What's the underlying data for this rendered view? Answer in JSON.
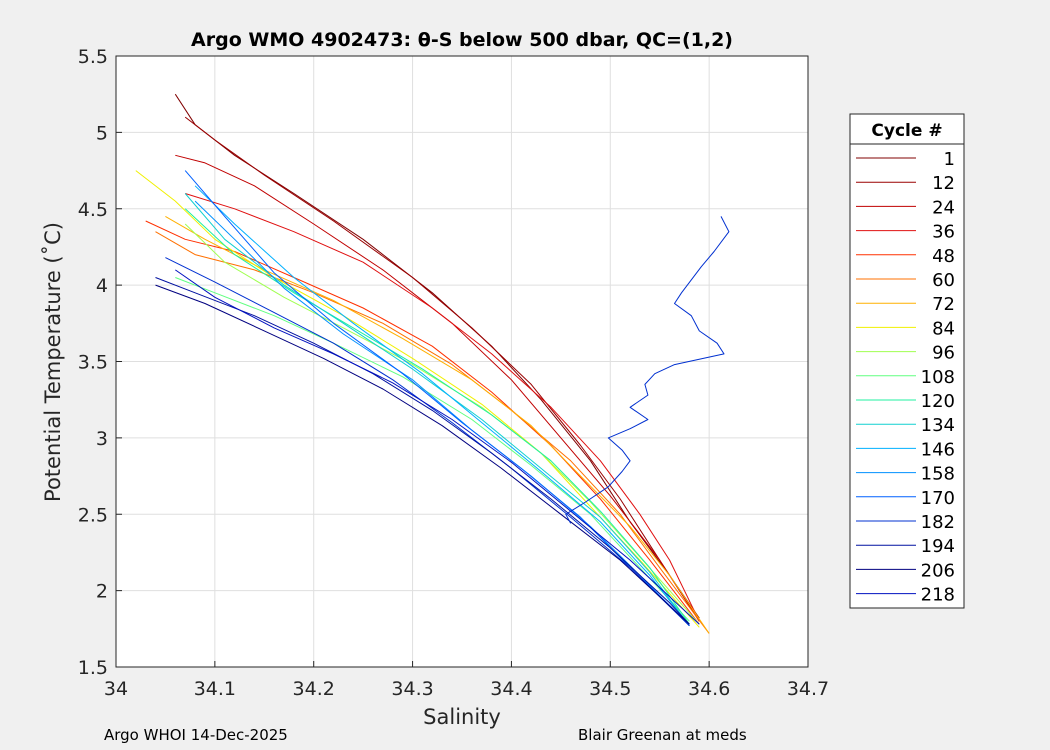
{
  "chart_data": {
    "type": "line",
    "title": "Argo WMO 4902473: θ-S below 500 dbar,  QC=(1,2)",
    "xlabel": "Salinity",
    "ylabel": "Potential Temperature (˚C)",
    "xlim": [
      34.0,
      34.7
    ],
    "ylim": [
      1.5,
      5.5
    ],
    "xticks": [
      "34",
      "34.1",
      "34.2",
      "34.3",
      "34.4",
      "34.5",
      "34.6",
      "34.7"
    ],
    "yticks": [
      "1.5",
      "2",
      "2.5",
      "3",
      "3.5",
      "4",
      "4.5",
      "5",
      "5.5"
    ],
    "grid": true,
    "legend_title": "Cycle #",
    "legend_position": "outside-right",
    "legend": [
      {
        "label": "1",
        "color": "#800000"
      },
      {
        "label": "12",
        "color": "#9a0000"
      },
      {
        "label": "24",
        "color": "#c00000"
      },
      {
        "label": "36",
        "color": "#e01010"
      },
      {
        "label": "48",
        "color": "#ff3000"
      },
      {
        "label": "60",
        "color": "#ff7000"
      },
      {
        "label": "72",
        "color": "#ffb000"
      },
      {
        "label": "84",
        "color": "#f0f000"
      },
      {
        "label": "96",
        "color": "#a0ff50"
      },
      {
        "label": "108",
        "color": "#60ff80"
      },
      {
        "label": "120",
        "color": "#20f0a0"
      },
      {
        "label": "134",
        "color": "#10d0d0"
      },
      {
        "label": "146",
        "color": "#00b0ff"
      },
      {
        "label": "158",
        "color": "#0090ff"
      },
      {
        "label": "170",
        "color": "#0060ff"
      },
      {
        "label": "182",
        "color": "#0030d0"
      },
      {
        "label": "194",
        "color": "#0010a0"
      },
      {
        "label": "206",
        "color": "#000080"
      },
      {
        "label": "218",
        "color": "#0010c0"
      }
    ],
    "series": [
      {
        "color": "#800000",
        "x": [
          34.06,
          34.08,
          34.12,
          34.18,
          34.25,
          34.32,
          34.38,
          34.43,
          34.48,
          34.52,
          34.56,
          34.59
        ],
        "y": [
          5.25,
          5.05,
          4.85,
          4.6,
          4.3,
          3.95,
          3.6,
          3.25,
          2.85,
          2.45,
          2.1,
          1.82
        ]
      },
      {
        "color": "#9a0000",
        "x": [
          34.07,
          34.1,
          34.15,
          34.22,
          34.3,
          34.36,
          34.42,
          34.47,
          34.51,
          34.55,
          34.59
        ],
        "y": [
          5.1,
          4.95,
          4.72,
          4.42,
          4.05,
          3.72,
          3.35,
          2.95,
          2.6,
          2.2,
          1.8
        ]
      },
      {
        "color": "#c00000",
        "x": [
          34.06,
          34.09,
          34.14,
          34.2,
          34.27,
          34.34,
          34.4,
          34.45,
          34.5,
          34.55,
          34.59
        ],
        "y": [
          4.85,
          4.8,
          4.65,
          4.4,
          4.1,
          3.75,
          3.38,
          3.0,
          2.62,
          2.2,
          1.8
        ]
      },
      {
        "color": "#e01010",
        "x": [
          34.07,
          34.12,
          34.18,
          34.25,
          34.32,
          34.38,
          34.44,
          34.49,
          34.53,
          34.56,
          34.59
        ],
        "y": [
          4.6,
          4.5,
          4.35,
          4.15,
          3.85,
          3.55,
          3.2,
          2.85,
          2.5,
          2.2,
          1.8
        ]
      },
      {
        "color": "#ff3000",
        "x": [
          34.03,
          34.07,
          34.12,
          34.18,
          34.25,
          34.32,
          34.38,
          34.44,
          34.49,
          34.54,
          34.59
        ],
        "y": [
          4.42,
          4.3,
          4.22,
          4.05,
          3.85,
          3.6,
          3.3,
          2.95,
          2.6,
          2.2,
          1.78
        ]
      },
      {
        "color": "#ff7000",
        "x": [
          34.04,
          34.08,
          34.14,
          34.2,
          34.27,
          34.34,
          34.4,
          34.46,
          34.51,
          34.55,
          34.6
        ],
        "y": [
          4.35,
          4.2,
          4.1,
          3.95,
          3.75,
          3.48,
          3.18,
          2.85,
          2.5,
          2.15,
          1.72
        ]
      },
      {
        "color": "#ffb000",
        "x": [
          34.05,
          34.09,
          34.15,
          34.22,
          34.29,
          34.36,
          34.42,
          34.47,
          34.52,
          34.56,
          34.6
        ],
        "y": [
          4.45,
          4.3,
          4.1,
          3.9,
          3.65,
          3.38,
          3.08,
          2.75,
          2.42,
          2.1,
          1.72
        ]
      },
      {
        "color": "#f0f000",
        "x": [
          34.02,
          34.06,
          34.1,
          34.16,
          34.23,
          34.3,
          34.37,
          34.43,
          34.48,
          34.53,
          34.59
        ],
        "y": [
          4.75,
          4.55,
          4.3,
          4.05,
          3.8,
          3.52,
          3.22,
          2.9,
          2.55,
          2.2,
          1.76
        ]
      },
      {
        "color": "#a0ff50",
        "x": [
          34.07,
          34.11,
          34.17,
          34.23,
          34.3,
          34.37,
          34.43,
          34.48,
          34.53,
          34.59
        ],
        "y": [
          4.4,
          4.15,
          3.92,
          3.72,
          3.48,
          3.2,
          2.9,
          2.58,
          2.22,
          1.78
        ]
      },
      {
        "color": "#60ff80",
        "x": [
          34.06,
          34.1,
          34.16,
          34.22,
          34.29,
          34.36,
          34.42,
          34.48,
          34.53,
          34.58
        ],
        "y": [
          4.05,
          3.95,
          3.8,
          3.62,
          3.4,
          3.12,
          2.82,
          2.5,
          2.15,
          1.8
        ]
      },
      {
        "color": "#20f0a0",
        "x": [
          34.07,
          34.12,
          34.18,
          34.24,
          34.31,
          34.38,
          34.44,
          34.49,
          34.54,
          34.58
        ],
        "y": [
          4.5,
          4.2,
          3.95,
          3.72,
          3.45,
          3.15,
          2.85,
          2.52,
          2.15,
          1.78
        ]
      },
      {
        "color": "#10d0d0",
        "x": [
          34.07,
          34.11,
          34.17,
          34.23,
          34.3,
          34.37,
          34.43,
          34.49,
          34.54,
          34.58
        ],
        "y": [
          4.6,
          4.3,
          4.0,
          3.75,
          3.45,
          3.12,
          2.8,
          2.48,
          2.12,
          1.77
        ]
      },
      {
        "color": "#00b0ff",
        "x": [
          34.08,
          34.12,
          34.18,
          34.24,
          34.31,
          34.37,
          34.43,
          34.49,
          34.54,
          34.58
        ],
        "y": [
          4.65,
          4.4,
          4.05,
          3.75,
          3.42,
          3.1,
          2.78,
          2.45,
          2.1,
          1.77
        ]
      },
      {
        "color": "#0090ff",
        "x": [
          34.08,
          34.12,
          34.17,
          34.23,
          34.3,
          34.36,
          34.42,
          34.48,
          34.53,
          34.58
        ],
        "y": [
          4.55,
          4.3,
          3.98,
          3.68,
          3.38,
          3.05,
          2.75,
          2.42,
          2.1,
          1.77
        ]
      },
      {
        "color": "#0060ff",
        "x": [
          34.07,
          34.11,
          34.16,
          34.22,
          34.29,
          34.35,
          34.41,
          34.47,
          34.52,
          34.58
        ],
        "y": [
          4.75,
          4.45,
          4.08,
          3.75,
          3.42,
          3.1,
          2.8,
          2.48,
          2.15,
          1.78
        ]
      },
      {
        "color": "#0030d0",
        "x": [
          34.05,
          34.1,
          34.16,
          34.22,
          34.28,
          34.34,
          34.4,
          34.46,
          34.52,
          34.58
        ],
        "y": [
          4.18,
          4.02,
          3.82,
          3.62,
          3.38,
          3.1,
          2.8,
          2.48,
          2.15,
          1.77
        ]
      },
      {
        "color": "#0010a0",
        "x": [
          34.04,
          34.08,
          34.14,
          34.2,
          34.26,
          34.32,
          34.38,
          34.44,
          34.5,
          34.56,
          34.58
        ],
        "y": [
          4.05,
          3.95,
          3.8,
          3.62,
          3.42,
          3.18,
          2.9,
          2.6,
          2.28,
          1.92,
          1.78
        ]
      },
      {
        "color": "#000080",
        "x": [
          34.04,
          34.09,
          34.15,
          34.21,
          34.27,
          34.33,
          34.39,
          34.45,
          34.51,
          34.56,
          34.58
        ],
        "y": [
          4.0,
          3.88,
          3.7,
          3.52,
          3.32,
          3.08,
          2.8,
          2.5,
          2.2,
          1.9,
          1.78
        ]
      },
      {
        "color": "#0010c0",
        "x": [
          34.06,
          34.1,
          34.16,
          34.22,
          34.28,
          34.34,
          34.4,
          34.46,
          34.52,
          34.57,
          34.59
        ],
        "y": [
          4.1,
          3.92,
          3.72,
          3.55,
          3.36,
          3.12,
          2.84,
          2.52,
          2.2,
          1.9,
          1.78
        ]
      },
      {
        "color": "#0030d0",
        "x": [
          34.612,
          34.62,
          34.605,
          34.592,
          34.572,
          34.565,
          34.582,
          34.59,
          34.608,
          34.615,
          34.565,
          34.545,
          34.535,
          34.538,
          34.52,
          34.538,
          34.52,
          34.498,
          34.512,
          34.52,
          34.512,
          34.498,
          34.475,
          34.455,
          34.46
        ],
        "y": [
          4.45,
          4.35,
          4.22,
          4.12,
          3.95,
          3.88,
          3.8,
          3.7,
          3.62,
          3.55,
          3.48,
          3.42,
          3.35,
          3.28,
          3.2,
          3.12,
          3.06,
          3.0,
          2.92,
          2.85,
          2.78,
          2.68,
          2.58,
          2.5,
          2.44
        ]
      }
    ]
  },
  "footer": {
    "left": "Argo WHOI 14-Dec-2025",
    "right": "Blair Greenan at meds"
  }
}
